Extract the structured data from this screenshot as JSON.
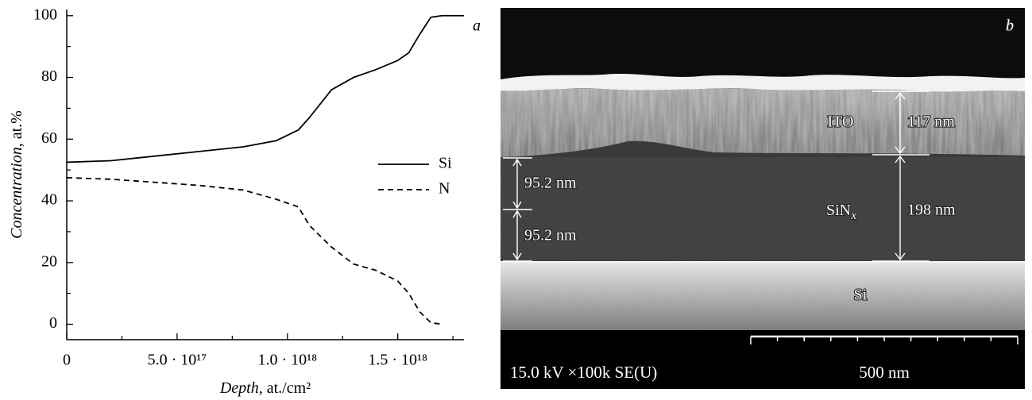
{
  "chart_data": {
    "type": "line",
    "panel_label": "a",
    "xlabel_name": "Depth",
    "xlabel_unit": ", at./cm²",
    "ylabel_name": "Concentration",
    "ylabel_unit": ", at.%",
    "x": [
      0,
      2e+17,
      4e+17,
      6e+17,
      8e+17,
      9.5e+17,
      1.05e+18,
      1.1e+18,
      1.2e+18,
      1.3e+18,
      1.4e+18,
      1.5e+18,
      1.55e+18,
      1.6e+18,
      1.65e+18,
      1.7e+18,
      1.8e+18
    ],
    "series": [
      {
        "name": "Si",
        "color": "#000000",
        "dash": false,
        "values": [
          52.5,
          53,
          54.5,
          56,
          57.5,
          59.5,
          63,
          67,
          76,
          80,
          82.5,
          85.5,
          88,
          94,
          99.5,
          100,
          100
        ]
      },
      {
        "name": "N",
        "color": "#000000",
        "dash": true,
        "values": [
          47.5,
          47,
          46,
          45,
          43.5,
          40.5,
          38,
          32,
          25,
          19.5,
          17.5,
          14,
          10,
          4,
          0.5,
          0,
          null
        ]
      }
    ],
    "xlim": [
      0,
      1.8e+18
    ],
    "ylim": [
      -5,
      102
    ],
    "xticks": [
      0,
      {
        "value": 5e+17,
        "label": "5.0 · 10¹⁷"
      },
      {
        "value": 1e+18,
        "label": "1.0 · 10¹⁸"
      },
      {
        "value": 1.5e+18,
        "label": "1.5 · 10¹⁸"
      }
    ],
    "xminor": [
      2.5e+17,
      7.5e+17,
      1.25e+18,
      1.75e+18
    ],
    "yticks": [
      0,
      20,
      40,
      60,
      80,
      100
    ],
    "yminor": [
      10,
      30,
      50,
      70,
      90
    ],
    "legend": "right"
  },
  "sem_image": {
    "panel_label": "b",
    "layers": {
      "ito": "ITO",
      "sin_main": "SiN",
      "sin_sub": "x",
      "si": "Si"
    },
    "thickness": {
      "ito": "117 nm",
      "sin": "198 nm",
      "sub_upper": "95.2 nm",
      "sub_lower": "95.2 nm"
    },
    "info_bar": {
      "settings": "15.0 kV ×100k SE(U)",
      "scale": "500 nm"
    }
  }
}
